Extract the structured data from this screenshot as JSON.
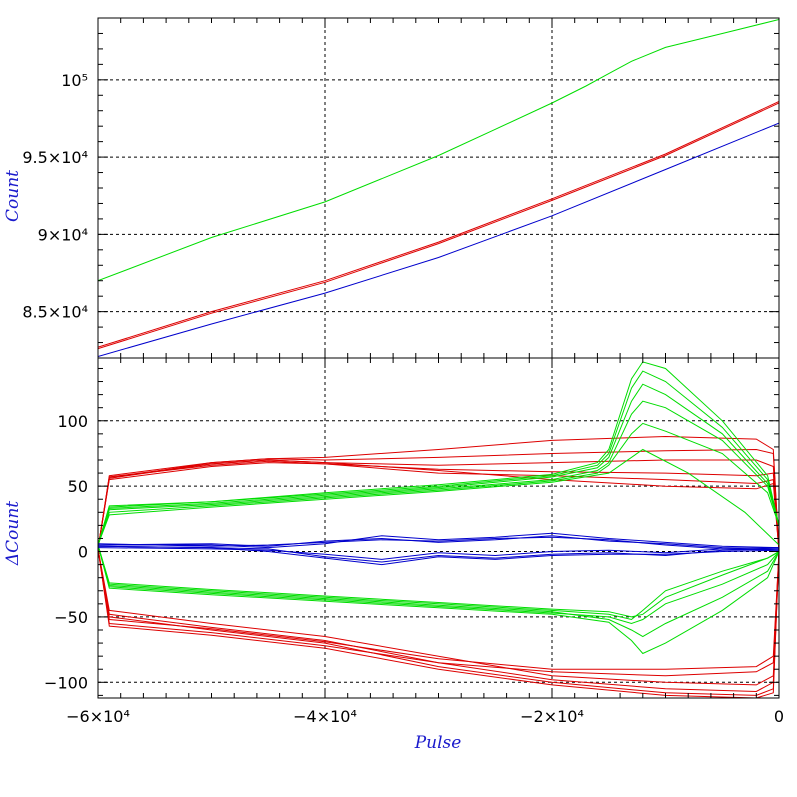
{
  "chart_data": [
    {
      "type": "line",
      "ylabel": "Count",
      "xlim": [
        -60000,
        0
      ],
      "ylim": [
        82000,
        104000
      ],
      "y_tick_labels": [
        "8.5×10⁴",
        "9×10⁴",
        "9.5×10⁴",
        "10⁵"
      ],
      "y_ticks": [
        85000,
        90000,
        95000,
        100000
      ],
      "grid": true,
      "series": [
        {
          "color": "#00dd00",
          "x": [
            -60000,
            -50000,
            -40000,
            -30000,
            -25000,
            -20000,
            -17000,
            -15000,
            -13000,
            -10000,
            -5000,
            0
          ],
          "values": [
            87000,
            89800,
            92100,
            95100,
            96800,
            98500,
            99600,
            100400,
            101200,
            102100,
            103000,
            103900
          ]
        },
        {
          "color": "#dd0000",
          "x": [
            -60000,
            -50000,
            -40000,
            -30000,
            -20000,
            -10000,
            0
          ],
          "values": [
            82700,
            85000,
            87000,
            89500,
            92300,
            95200,
            98600
          ]
        },
        {
          "color": "#dd0000",
          "x": [
            -60000,
            -50000,
            -40000,
            -30000,
            -20000,
            -10000,
            0
          ],
          "values": [
            82600,
            84900,
            86900,
            89400,
            92200,
            95100,
            98500
          ]
        },
        {
          "color": "#0000cc",
          "x": [
            -60000,
            -50000,
            -40000,
            -30000,
            -20000,
            -10000,
            0
          ],
          "values": [
            82100,
            84200,
            86200,
            88500,
            91200,
            94200,
            97200
          ]
        }
      ]
    },
    {
      "type": "line",
      "xlabel": "Pulse",
      "ylabel": "ΔCount",
      "xlim": [
        -60000,
        0
      ],
      "ylim": [
        -112,
        148
      ],
      "y_tick_labels": [
        "−100",
        "−50",
        "0",
        "50",
        "100"
      ],
      "y_ticks": [
        -100,
        -50,
        0,
        50,
        100
      ],
      "x_tick_labels": [
        "−6×10⁴",
        "−4×10⁴",
        "−2×10⁴",
        "0"
      ],
      "x_ticks": [
        -60000,
        -40000,
        -20000,
        0
      ],
      "grid": true,
      "series": [
        {
          "color": "#dd0000",
          "x": [
            -60000,
            -59000,
            -50000,
            -45000,
            -40000,
            -30000,
            -20000,
            -10000,
            -2000,
            -500,
            0
          ],
          "values": [
            2,
            55,
            65,
            68,
            67,
            60,
            58,
            55,
            52,
            55,
            0
          ]
        },
        {
          "color": "#dd0000",
          "x": [
            -60000,
            -59000,
            -50000,
            -45000,
            -40000,
            -30000,
            -20000,
            -10000,
            -2000,
            -500,
            0
          ],
          "values": [
            2,
            58,
            68,
            71,
            70,
            72,
            75,
            77,
            78,
            75,
            0
          ]
        },
        {
          "color": "#dd0000",
          "x": [
            -60000,
            -59000,
            -50000,
            -45000,
            -40000,
            -30000,
            -20000,
            -10000,
            -2000,
            -500,
            0
          ],
          "values": [
            2,
            56,
            67,
            70,
            68,
            66,
            68,
            70,
            70,
            65,
            0
          ]
        },
        {
          "color": "#dd0000",
          "x": [
            -60000,
            -59000,
            -50000,
            -45000,
            -40000,
            -30000,
            -20000,
            -10000,
            -2000,
            -500,
            0
          ],
          "values": [
            2,
            57,
            66,
            69,
            67,
            63,
            61,
            60,
            58,
            60,
            0
          ]
        },
        {
          "color": "#dd0000",
          "x": [
            -60000,
            -59000,
            -50000,
            -45000,
            -40000,
            -30000,
            -20000,
            -10000,
            -2000,
            -500,
            0
          ],
          "values": [
            2,
            56,
            68,
            71,
            72,
            78,
            85,
            88,
            86,
            78,
            0
          ]
        },
        {
          "color": "#dd0000",
          "x": [
            -60000,
            -59000,
            -50000,
            -45000,
            -40000,
            -30000,
            -20000,
            -10000,
            -2000,
            -500,
            0
          ],
          "values": [
            2,
            57,
            67,
            70,
            68,
            62,
            55,
            50,
            48,
            52,
            0
          ]
        },
        {
          "color": "#dd0000",
          "x": [
            -60000,
            -59000,
            -50000,
            -40000,
            -30000,
            -20000,
            -10000,
            -2000,
            -500,
            0
          ],
          "values": [
            2,
            -45,
            -55,
            -65,
            -80,
            -95,
            -100,
            -102,
            -95,
            0
          ]
        },
        {
          "color": "#dd0000",
          "x": [
            -60000,
            -59000,
            -50000,
            -40000,
            -30000,
            -20000,
            -10000,
            -2000,
            -500,
            0
          ],
          "values": [
            2,
            -48,
            -58,
            -68,
            -85,
            -98,
            -105,
            -107,
            -100,
            0
          ]
        },
        {
          "color": "#dd0000",
          "x": [
            -60000,
            -59000,
            -50000,
            -40000,
            -30000,
            -20000,
            -10000,
            -2000,
            -500,
            0
          ],
          "values": [
            2,
            -50,
            -60,
            -70,
            -88,
            -100,
            -108,
            -110,
            -105,
            0
          ]
        },
        {
          "color": "#dd0000",
          "x": [
            -60000,
            -59000,
            -50000,
            -40000,
            -30000,
            -20000,
            -10000,
            -2000,
            -500,
            0
          ],
          "values": [
            2,
            -55,
            -62,
            -72,
            -85,
            -92,
            -95,
            -92,
            -85,
            0
          ]
        },
        {
          "color": "#dd0000",
          "x": [
            -60000,
            -59000,
            -50000,
            -40000,
            -30000,
            -20000,
            -10000,
            -2000,
            -500,
            0
          ],
          "values": [
            2,
            -57,
            -64,
            -74,
            -90,
            -102,
            -110,
            -112,
            -108,
            0
          ]
        },
        {
          "color": "#dd0000",
          "x": [
            -60000,
            -59000,
            -50000,
            -40000,
            -30000,
            -20000,
            -10000,
            -2000,
            -500,
            0
          ],
          "values": [
            2,
            -52,
            -59,
            -69,
            -82,
            -90,
            -90,
            -88,
            -80,
            0
          ]
        },
        {
          "color": "#00dd00",
          "x": [
            -60000,
            -59000,
            -50000,
            -40000,
            -30000,
            -20000,
            -16000,
            -15000,
            -13000,
            -12000,
            -10000,
            -5000,
            -1000,
            0
          ],
          "values": [
            5,
            32,
            36,
            42,
            48,
            55,
            62,
            68,
            105,
            115,
            110,
            85,
            50,
            20
          ]
        },
        {
          "color": "#00dd00",
          "x": [
            -60000,
            -59000,
            -50000,
            -40000,
            -30000,
            -20000,
            -16000,
            -15000,
            -13000,
            -12000,
            -10000,
            -5000,
            -1000,
            0
          ],
          "values": [
            5,
            34,
            38,
            44,
            50,
            58,
            66,
            75,
            125,
            138,
            130,
            95,
            55,
            20
          ]
        },
        {
          "color": "#00dd00",
          "x": [
            -60000,
            -59000,
            -50000,
            -40000,
            -30000,
            -20000,
            -16000,
            -15000,
            -13000,
            -12000,
            -10000,
            -5000,
            -1000,
            0
          ],
          "values": [
            5,
            33,
            37,
            43,
            49,
            57,
            64,
            72,
            115,
            128,
            120,
            90,
            52,
            20
          ]
        },
        {
          "color": "#00dd00",
          "x": [
            -60000,
            -59000,
            -50000,
            -40000,
            -30000,
            -20000,
            -16000,
            -15000,
            -13000,
            -12000,
            -10000,
            -5000,
            -1000,
            0
          ],
          "values": [
            5,
            35,
            38,
            45,
            51,
            59,
            68,
            78,
            132,
            145,
            140,
            100,
            58,
            20
          ]
        },
        {
          "color": "#00dd00",
          "x": [
            -60000,
            -59000,
            -50000,
            -40000,
            -30000,
            -20000,
            -16000,
            -15000,
            -13000,
            -12000,
            -10000,
            -5000,
            -1000,
            0
          ],
          "values": [
            5,
            30,
            35,
            41,
            47,
            54,
            60,
            66,
            90,
            98,
            92,
            75,
            45,
            20
          ]
        },
        {
          "color": "#00dd00",
          "x": [
            -60000,
            -59000,
            -50000,
            -40000,
            -30000,
            -20000,
            -15000,
            -12000,
            -8000,
            -3000,
            0
          ],
          "values": [
            5,
            28,
            34,
            40,
            46,
            53,
            60,
            78,
            60,
            30,
            5
          ]
        },
        {
          "color": "#00dd00",
          "x": [
            -60000,
            -59000,
            -50000,
            -40000,
            -30000,
            -20000,
            -15000,
            -13000,
            -12000,
            -10000,
            -5000,
            -1000,
            0
          ],
          "values": [
            5,
            -25,
            -30,
            -35,
            -40,
            -45,
            -48,
            -52,
            -45,
            -30,
            -15,
            -5,
            0
          ]
        },
        {
          "color": "#00dd00",
          "x": [
            -60000,
            -59000,
            -50000,
            -40000,
            -30000,
            -20000,
            -15000,
            -13000,
            -12000,
            -10000,
            -5000,
            -1000,
            0
          ],
          "values": [
            5,
            -27,
            -32,
            -37,
            -42,
            -47,
            -50,
            -55,
            -52,
            -40,
            -25,
            -10,
            0
          ]
        },
        {
          "color": "#00dd00",
          "x": [
            -60000,
            -59000,
            -50000,
            -40000,
            -30000,
            -20000,
            -15000,
            -13000,
            -12000,
            -10000,
            -5000,
            -1000,
            0
          ],
          "values": [
            5,
            -26,
            -31,
            -36,
            -41,
            -46,
            -52,
            -60,
            -65,
            -55,
            -35,
            -15,
            0
          ]
        },
        {
          "color": "#00dd00",
          "x": [
            -60000,
            -59000,
            -50000,
            -40000,
            -30000,
            -20000,
            -15000,
            -13000,
            -12000,
            -10000,
            -5000,
            -1000,
            0
          ],
          "values": [
            5,
            -28,
            -33,
            -38,
            -43,
            -48,
            -54,
            -68,
            -78,
            -70,
            -45,
            -20,
            0
          ]
        },
        {
          "color": "#00dd00",
          "x": [
            -60000,
            -59000,
            -50000,
            -40000,
            -30000,
            -20000,
            -15000,
            -13000,
            -12000,
            -10000,
            -5000,
            -1000,
            0
          ],
          "values": [
            5,
            -24,
            -29,
            -34,
            -39,
            -44,
            -46,
            -50,
            -48,
            -35,
            -18,
            -5,
            0
          ]
        },
        {
          "color": "#0000cc",
          "x": [
            -60000,
            -50000,
            -45000,
            -40000,
            -35000,
            -30000,
            -25000,
            -20000,
            -15000,
            -10000,
            -5000,
            0
          ],
          "values": [
            5,
            6,
            4,
            8,
            10,
            7,
            9,
            12,
            8,
            6,
            3,
            2
          ]
        },
        {
          "color": "#0000cc",
          "x": [
            -60000,
            -50000,
            -45000,
            -40000,
            -35000,
            -30000,
            -25000,
            -20000,
            -15000,
            -10000,
            -5000,
            0
          ],
          "values": [
            4,
            3,
            2,
            -4,
            -8,
            -3,
            -5,
            -2,
            -1,
            -3,
            1,
            2
          ]
        },
        {
          "color": "#0000cc",
          "x": [
            -60000,
            -50000,
            -45000,
            -40000,
            -35000,
            -30000,
            -25000,
            -20000,
            -15000,
            -10000,
            -5000,
            0
          ],
          "values": [
            5,
            5,
            3,
            6,
            12,
            9,
            11,
            14,
            10,
            7,
            4,
            3
          ]
        },
        {
          "color": "#0000cc",
          "x": [
            -60000,
            -50000,
            -45000,
            -40000,
            -35000,
            -30000,
            -25000,
            -20000,
            -15000,
            -10000,
            -5000,
            0
          ],
          "values": [
            3,
            2,
            1,
            -2,
            -6,
            -1,
            -3,
            0,
            1,
            -1,
            2,
            1
          ]
        },
        {
          "color": "#0000cc",
          "x": [
            -60000,
            -50000,
            -45000,
            -40000,
            -35000,
            -30000,
            -25000,
            -20000,
            -15000,
            -10000,
            -5000,
            0
          ],
          "values": [
            6,
            4,
            5,
            7,
            9,
            8,
            10,
            11,
            9,
            5,
            2,
            3
          ]
        },
        {
          "color": "#0000cc",
          "x": [
            -60000,
            -50000,
            -45000,
            -40000,
            -35000,
            -30000,
            -25000,
            -20000,
            -15000,
            -10000,
            -5000,
            0
          ],
          "values": [
            4,
            3,
            0,
            -5,
            -10,
            -4,
            -6,
            -3,
            -2,
            -2,
            0,
            1
          ]
        }
      ]
    }
  ]
}
